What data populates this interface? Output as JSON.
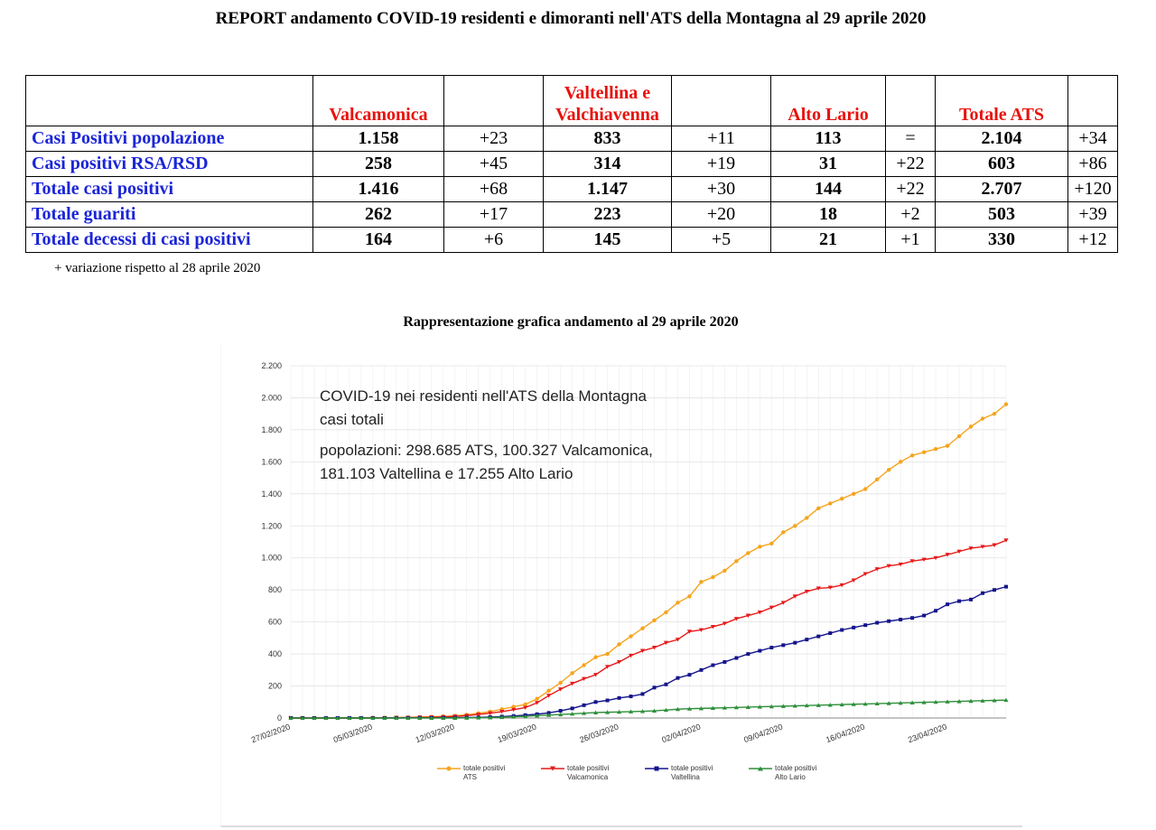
{
  "title": "REPORT andamento COVID-19 residenti e dimoranti nell'ATS della Montagna  al 29 aprile 2020",
  "table": {
    "headers": [
      "Valcamonica",
      "Valtellina  e Valchiavenna",
      "Alto Lario",
      "Totale ATS"
    ],
    "rows": [
      {
        "label": "Casi Positivi popolazione",
        "v1": "1.158",
        "d1": "+23",
        "v2": "833",
        "d2": "+11",
        "v3": "113",
        "d3": "=",
        "v4": "2.104",
        "d4": "+34"
      },
      {
        "label": "Casi positivi RSA/RSD",
        "v1": "258",
        "d1": "+45",
        "v2": "314",
        "d2": "+19",
        "v3": "31",
        "d3": "+22",
        "v4": "603",
        "d4": "+86"
      },
      {
        "label": "Totale casi positivi",
        "v1": "1.416",
        "d1": "+68",
        "v2": "1.147",
        "d2": "+30",
        "v3": "144",
        "d3": "+22",
        "v4": "2.707",
        "d4": "+120"
      },
      {
        "label": "Totale guariti",
        "v1": "262",
        "d1": "+17",
        "v2": "223",
        "d2": "+20",
        "v3": "18",
        "d3": "+2",
        "v4": "503",
        "d4": "+39"
      },
      {
        "label": "Totale decessi di casi positivi",
        "v1": "164",
        "d1": "+6",
        "v2": "145",
        "d2": "+5",
        "v3": "21",
        "d3": "+1",
        "v4": "330",
        "d4": "+12"
      }
    ]
  },
  "footnote": "+  variazione rispetto al 28 aprile 2020",
  "subtitle": "Rappresentazione grafica andamento al 29 aprile 2020",
  "chart_overlay": {
    "line1": "COVID-19 nei residenti nell'ATS della Montagna",
    "line2": "casi totali",
    "line3": "popolazioni: 298.685 ATS, 100.327 Valcamonica,",
    "line4": "181.103 Valtellina e 17.255 Alto Lario"
  },
  "legend": [
    {
      "l1": "totale positivi",
      "l2": "ATS"
    },
    {
      "l1": "totale positivi",
      "l2": "Valcamonica"
    },
    {
      "l1": "totale positivi",
      "l2": "Valtellina"
    },
    {
      "l1": "totale positivi",
      "l2": "Alto Lario"
    }
  ],
  "chart_data": {
    "type": "line",
    "title": "COVID-19 nei residenti nell'ATS della Montagna casi totali",
    "ylim": [
      0,
      2200
    ],
    "ytick_values": [
      0,
      200,
      400,
      600,
      800,
      1000,
      1200,
      1400,
      1600,
      1800,
      2000,
      2200
    ],
    "ytick_labels": [
      "0",
      "200",
      "400",
      "600",
      "800",
      "1.000",
      "1.200",
      "1.400",
      "1.600",
      "1.800",
      "2.000",
      "2.200"
    ],
    "x_start": "27/02/2020",
    "x_count": 62,
    "x_ticks": [
      {
        "index": 0,
        "label": "27/02/2020"
      },
      {
        "index": 7,
        "label": "05/03/2020"
      },
      {
        "index": 14,
        "label": "12/03/2020"
      },
      {
        "index": 21,
        "label": "19/03/2020"
      },
      {
        "index": 28,
        "label": "26/03/2020"
      },
      {
        "index": 35,
        "label": "02/04/2020"
      },
      {
        "index": 42,
        "label": "09/04/2020"
      },
      {
        "index": 49,
        "label": "16/04/2020"
      },
      {
        "index": 56,
        "label": "23/04/2020"
      }
    ],
    "series": [
      {
        "name": "totale positivi ATS",
        "color": "#f5a41e",
        "marker": "circle",
        "values": [
          0,
          0,
          0,
          0,
          0,
          0,
          1,
          2,
          2,
          3,
          4,
          6,
          8,
          10,
          14,
          20,
          30,
          40,
          55,
          70,
          85,
          120,
          170,
          220,
          280,
          330,
          380,
          400,
          460,
          510,
          560,
          610,
          660,
          720,
          760,
          850,
          880,
          920,
          980,
          1030,
          1070,
          1090,
          1160,
          1200,
          1250,
          1310,
          1340,
          1370,
          1400,
          1430,
          1490,
          1550,
          1600,
          1640,
          1660,
          1680,
          1700,
          1760,
          1820,
          1870,
          1900,
          1960
        ]
      },
      {
        "name": "totale positivi Valcamonica",
        "color": "#e61a1a",
        "marker": "triangle-down",
        "values": [
          0,
          0,
          0,
          0,
          0,
          0,
          0,
          1,
          1,
          2,
          3,
          4,
          5,
          7,
          10,
          15,
          22,
          30,
          40,
          52,
          65,
          95,
          140,
          180,
          215,
          245,
          270,
          320,
          350,
          390,
          420,
          440,
          470,
          490,
          540,
          550,
          570,
          590,
          620,
          640,
          660,
          690,
          720,
          760,
          790,
          810,
          815,
          830,
          860,
          900,
          930,
          950,
          960,
          980,
          990,
          1000,
          1020,
          1040,
          1060,
          1070,
          1080,
          1110
        ]
      },
      {
        "name": "totale positivi Valtellina",
        "color": "#14148c",
        "marker": "square",
        "values": [
          0,
          0,
          0,
          0,
          0,
          0,
          0,
          0,
          0,
          0,
          1,
          1,
          1,
          2,
          2,
          3,
          4,
          6,
          9,
          13,
          18,
          24,
          32,
          45,
          60,
          80,
          100,
          110,
          125,
          135,
          150,
          190,
          210,
          250,
          270,
          300,
          330,
          350,
          375,
          400,
          420,
          440,
          455,
          470,
          490,
          510,
          530,
          550,
          565,
          580,
          595,
          605,
          615,
          625,
          640,
          670,
          710,
          730,
          740,
          780,
          800,
          820
        ]
      },
      {
        "name": "totale positivi Alto Lario",
        "color": "#2e8f3a",
        "marker": "triangle-up",
        "values": [
          0,
          0,
          0,
          0,
          0,
          0,
          0,
          0,
          0,
          0,
          0,
          0,
          0,
          0,
          0,
          1,
          2,
          3,
          5,
          8,
          10,
          15,
          18,
          22,
          26,
          30,
          34,
          36,
          38,
          40,
          42,
          45,
          50,
          55,
          58,
          60,
          62,
          64,
          66,
          68,
          70,
          72,
          74,
          76,
          78,
          80,
          82,
          84,
          86,
          88,
          90,
          92,
          94,
          96,
          98,
          100,
          102,
          104,
          106,
          108,
          110,
          112
        ]
      }
    ]
  }
}
